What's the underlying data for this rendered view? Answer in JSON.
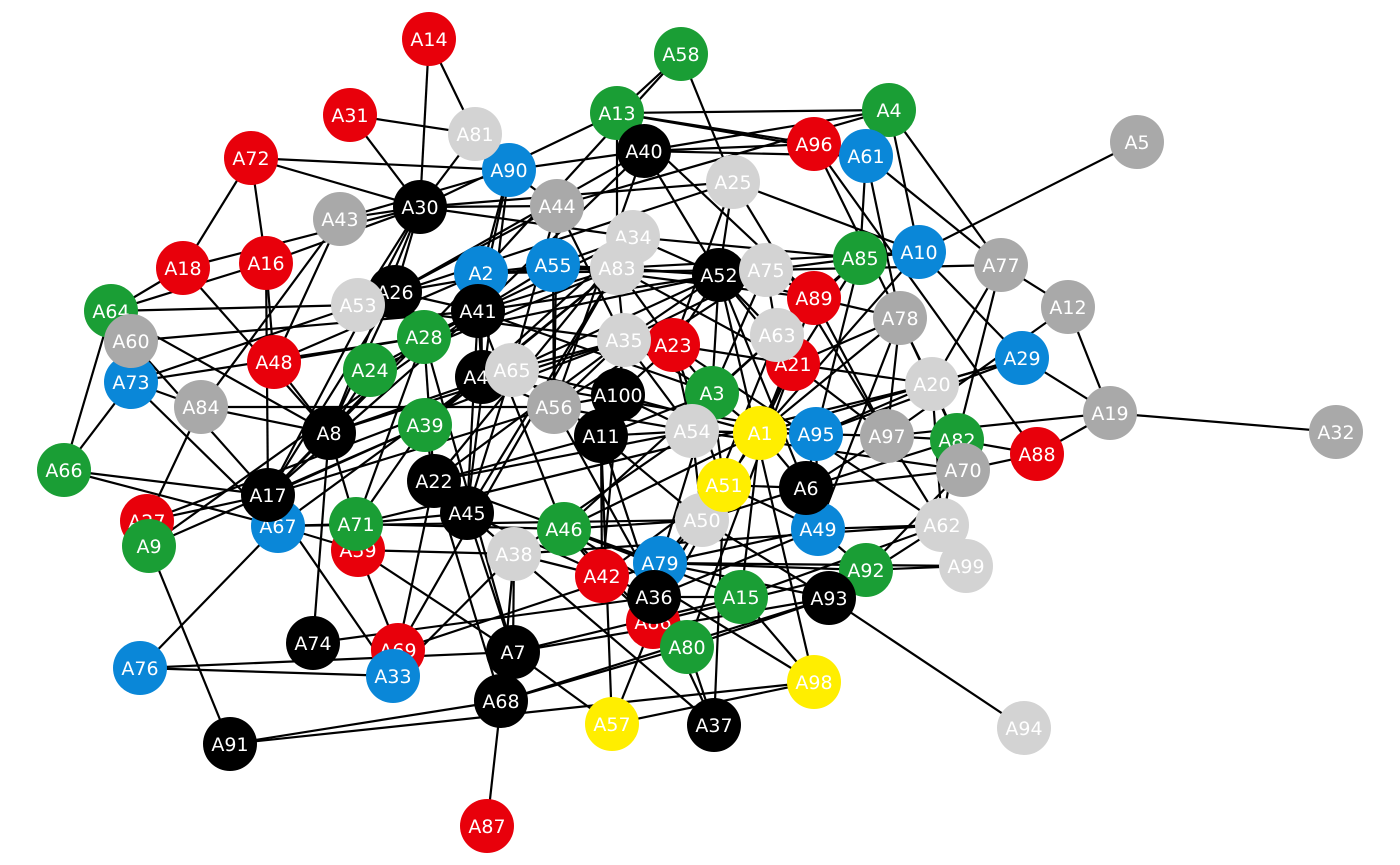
{
  "colors": {
    "red": "#e8000b",
    "green": "#1a9e35",
    "blue": "#0a87d8",
    "black": "#000000",
    "gray": "#a9a9a9",
    "light": "#d3d3d3",
    "yellow": "#ffee00"
  },
  "nodes": [
    {
      "id": "A14",
      "color": "red"
    },
    {
      "id": "A31",
      "color": "red"
    },
    {
      "id": "A72",
      "color": "red"
    },
    {
      "id": "A18",
      "color": "red"
    },
    {
      "id": "A16",
      "color": "red"
    },
    {
      "id": "A48",
      "color": "red"
    },
    {
      "id": "A27",
      "color": "red"
    },
    {
      "id": "A59",
      "color": "red"
    },
    {
      "id": "A69",
      "color": "red"
    },
    {
      "id": "A87",
      "color": "red"
    },
    {
      "id": "A42",
      "color": "red"
    },
    {
      "id": "A86",
      "color": "red"
    },
    {
      "id": "A23",
      "color": "red"
    },
    {
      "id": "A21",
      "color": "red"
    },
    {
      "id": "A89",
      "color": "red"
    },
    {
      "id": "A96",
      "color": "red"
    },
    {
      "id": "A88",
      "color": "red"
    },
    {
      "id": "A58",
      "color": "green"
    },
    {
      "id": "A13",
      "color": "green"
    },
    {
      "id": "A4",
      "color": "green"
    },
    {
      "id": "A85",
      "color": "green"
    },
    {
      "id": "A64",
      "color": "green"
    },
    {
      "id": "A28",
      "color": "green"
    },
    {
      "id": "A24",
      "color": "green"
    },
    {
      "id": "A39",
      "color": "green"
    },
    {
      "id": "A66",
      "color": "green"
    },
    {
      "id": "A9",
      "color": "green"
    },
    {
      "id": "A71",
      "color": "green"
    },
    {
      "id": "A46",
      "color": "green"
    },
    {
      "id": "A3",
      "color": "green"
    },
    {
      "id": "A15",
      "color": "green"
    },
    {
      "id": "A80",
      "color": "green"
    },
    {
      "id": "A92",
      "color": "green"
    },
    {
      "id": "A82",
      "color": "green"
    },
    {
      "id": "A90",
      "color": "blue"
    },
    {
      "id": "A61",
      "color": "blue"
    },
    {
      "id": "A10",
      "color": "blue"
    },
    {
      "id": "A2",
      "color": "blue"
    },
    {
      "id": "A55",
      "color": "blue"
    },
    {
      "id": "A73",
      "color": "blue"
    },
    {
      "id": "A67",
      "color": "blue"
    },
    {
      "id": "A76",
      "color": "blue"
    },
    {
      "id": "A33",
      "color": "blue"
    },
    {
      "id": "A79",
      "color": "blue"
    },
    {
      "id": "A49",
      "color": "blue"
    },
    {
      "id": "A95",
      "color": "blue"
    },
    {
      "id": "A29",
      "color": "blue"
    },
    {
      "id": "A30",
      "color": "black"
    },
    {
      "id": "A40",
      "color": "black"
    },
    {
      "id": "A26",
      "color": "black"
    },
    {
      "id": "A41",
      "color": "black"
    },
    {
      "id": "A47",
      "color": "black"
    },
    {
      "id": "A8",
      "color": "black"
    },
    {
      "id": "A17",
      "color": "black"
    },
    {
      "id": "A22",
      "color": "black"
    },
    {
      "id": "A45",
      "color": "black"
    },
    {
      "id": "A74",
      "color": "black"
    },
    {
      "id": "A7",
      "color": "black"
    },
    {
      "id": "A68",
      "color": "black"
    },
    {
      "id": "A91",
      "color": "black"
    },
    {
      "id": "A11",
      "color": "black"
    },
    {
      "id": "A100",
      "color": "black"
    },
    {
      "id": "A52",
      "color": "black"
    },
    {
      "id": "A36",
      "color": "black"
    },
    {
      "id": "A37",
      "color": "black"
    },
    {
      "id": "A93",
      "color": "black"
    },
    {
      "id": "A6",
      "color": "black"
    },
    {
      "id": "A5",
      "color": "gray"
    },
    {
      "id": "A43",
      "color": "gray"
    },
    {
      "id": "A44",
      "color": "gray"
    },
    {
      "id": "A60",
      "color": "gray"
    },
    {
      "id": "A84",
      "color": "gray"
    },
    {
      "id": "A56",
      "color": "gray"
    },
    {
      "id": "A78",
      "color": "gray"
    },
    {
      "id": "A77",
      "color": "gray"
    },
    {
      "id": "A12",
      "color": "gray"
    },
    {
      "id": "A19",
      "color": "gray"
    },
    {
      "id": "A32",
      "color": "gray"
    },
    {
      "id": "A97",
      "color": "gray"
    },
    {
      "id": "A70",
      "color": "gray"
    },
    {
      "id": "A81",
      "color": "light"
    },
    {
      "id": "A25",
      "color": "light"
    },
    {
      "id": "A34",
      "color": "light"
    },
    {
      "id": "A83",
      "color": "light"
    },
    {
      "id": "A75",
      "color": "light"
    },
    {
      "id": "A53",
      "color": "light"
    },
    {
      "id": "A35",
      "color": "light"
    },
    {
      "id": "A63",
      "color": "light"
    },
    {
      "id": "A65",
      "color": "light"
    },
    {
      "id": "A54",
      "color": "light"
    },
    {
      "id": "A20",
      "color": "light"
    },
    {
      "id": "A50",
      "color": "light"
    },
    {
      "id": "A38",
      "color": "light"
    },
    {
      "id": "A62",
      "color": "light"
    },
    {
      "id": "A99",
      "color": "light"
    },
    {
      "id": "A94",
      "color": "light"
    },
    {
      "id": "A1",
      "color": "yellow"
    },
    {
      "id": "A51",
      "color": "yellow"
    },
    {
      "id": "A57",
      "color": "yellow"
    },
    {
      "id": "A98",
      "color": "yellow"
    }
  ],
  "edges": [
    [
      "A14",
      "A81"
    ],
    [
      "A14",
      "A30"
    ],
    [
      "A81",
      "A30"
    ],
    [
      "A81",
      "A90"
    ],
    [
      "A31",
      "A30"
    ],
    [
      "A31",
      "A81"
    ],
    [
      "A72",
      "A30"
    ],
    [
      "A72",
      "A90"
    ],
    [
      "A72",
      "A18"
    ],
    [
      "A72",
      "A16"
    ],
    [
      "A18",
      "A64"
    ],
    [
      "A18",
      "A8"
    ],
    [
      "A18",
      "A30"
    ],
    [
      "A16",
      "A48"
    ],
    [
      "A16",
      "A30"
    ],
    [
      "A16",
      "A17"
    ],
    [
      "A16",
      "A64"
    ],
    [
      "A64",
      "A60"
    ],
    [
      "A64",
      "A66"
    ],
    [
      "A64",
      "A53"
    ],
    [
      "A64",
      "A8"
    ],
    [
      "A60",
      "A41"
    ],
    [
      "A60",
      "A17"
    ],
    [
      "A60",
      "A73"
    ],
    [
      "A73",
      "A84"
    ],
    [
      "A73",
      "A28"
    ],
    [
      "A73",
      "A67"
    ],
    [
      "A66",
      "A17"
    ],
    [
      "A66",
      "A73"
    ],
    [
      "A66",
      "A67"
    ],
    [
      "A43",
      "A30"
    ],
    [
      "A43",
      "A90"
    ],
    [
      "A43",
      "A48"
    ],
    [
      "A43",
      "A84"
    ],
    [
      "A84",
      "A8"
    ],
    [
      "A84",
      "A56"
    ],
    [
      "A84",
      "A27"
    ],
    [
      "A48",
      "A8"
    ],
    [
      "A48",
      "A2"
    ],
    [
      "A48",
      "A28"
    ],
    [
      "A27",
      "A17"
    ],
    [
      "A27",
      "A35"
    ],
    [
      "A9",
      "A91"
    ],
    [
      "A9",
      "A39"
    ],
    [
      "A9",
      "A41"
    ],
    [
      "A67",
      "A76"
    ],
    [
      "A67",
      "A71"
    ],
    [
      "A67",
      "A47"
    ],
    [
      "A67",
      "A59"
    ],
    [
      "A67",
      "A50"
    ],
    [
      "A17",
      "A41"
    ],
    [
      "A17",
      "A39"
    ],
    [
      "A17",
      "A28"
    ],
    [
      "A17",
      "A56"
    ],
    [
      "A17",
      "A33"
    ],
    [
      "A17",
      "A2"
    ],
    [
      "A8",
      "A74"
    ],
    [
      "A8",
      "A30"
    ],
    [
      "A8",
      "A26"
    ],
    [
      "A8",
      "A65"
    ],
    [
      "A8",
      "A71"
    ],
    [
      "A8",
      "A35"
    ],
    [
      "A24",
      "A41"
    ],
    [
      "A24",
      "A8"
    ],
    [
      "A24",
      "A83"
    ],
    [
      "A28",
      "A22"
    ],
    [
      "A28",
      "A52"
    ],
    [
      "A28",
      "A41"
    ],
    [
      "A28",
      "A71"
    ],
    [
      "A28",
      "A26"
    ],
    [
      "A39",
      "A22"
    ],
    [
      "A39",
      "A34"
    ],
    [
      "A39",
      "A71"
    ],
    [
      "A39",
      "A83"
    ],
    [
      "A71",
      "A46"
    ],
    [
      "A71",
      "A45"
    ],
    [
      "A71",
      "A20"
    ],
    [
      "A59",
      "A69"
    ],
    [
      "A59",
      "A7"
    ],
    [
      "A59",
      "A38"
    ],
    [
      "A74",
      "A36"
    ],
    [
      "A69",
      "A22"
    ],
    [
      "A69",
      "A79"
    ],
    [
      "A69",
      "A83"
    ],
    [
      "A69",
      "A33"
    ],
    [
      "A33",
      "A38"
    ],
    [
      "A33",
      "A76"
    ],
    [
      "A76",
      "A7"
    ],
    [
      "A7",
      "A45"
    ],
    [
      "A7",
      "A68"
    ],
    [
      "A7",
      "A28"
    ],
    [
      "A7",
      "A93"
    ],
    [
      "A7",
      "A57"
    ],
    [
      "A7",
      "A15"
    ],
    [
      "A7",
      "A38"
    ],
    [
      "A68",
      "A87"
    ],
    [
      "A68",
      "A91"
    ],
    [
      "A68",
      "A22"
    ],
    [
      "A68",
      "A80"
    ],
    [
      "A68",
      "A93"
    ],
    [
      "A68",
      "A38"
    ],
    [
      "A57",
      "A98"
    ],
    [
      "A57",
      "A11"
    ],
    [
      "A57",
      "A86"
    ],
    [
      "A37",
      "A36"
    ],
    [
      "A37",
      "A38"
    ],
    [
      "A37",
      "A79"
    ],
    [
      "A37",
      "A51"
    ],
    [
      "A86",
      "A46"
    ],
    [
      "A86",
      "A21"
    ],
    [
      "A86",
      "A92"
    ],
    [
      "A80",
      "A21"
    ],
    [
      "A80",
      "A36"
    ],
    [
      "A80",
      "A56"
    ],
    [
      "A80",
      "A93"
    ],
    [
      "A15",
      "A36"
    ],
    [
      "A15",
      "A62"
    ],
    [
      "A15",
      "A1"
    ],
    [
      "A15",
      "A46"
    ],
    [
      "A93",
      "A94"
    ],
    [
      "A93",
      "A79"
    ],
    [
      "A93",
      "A62"
    ],
    [
      "A92",
      "A49"
    ],
    [
      "A92",
      "A79"
    ],
    [
      "A92",
      "A99"
    ],
    [
      "A99",
      "A62"
    ],
    [
      "A99",
      "A79"
    ],
    [
      "A62",
      "A82"
    ],
    [
      "A62",
      "A23"
    ],
    [
      "A62",
      "A20"
    ],
    [
      "A70",
      "A88"
    ],
    [
      "A70",
      "A54"
    ],
    [
      "A70",
      "A92"
    ],
    [
      "A88",
      "A19"
    ],
    [
      "A88",
      "A82"
    ],
    [
      "A19",
      "A32"
    ],
    [
      "A19",
      "A12"
    ],
    [
      "A19",
      "A97"
    ],
    [
      "A19",
      "A29"
    ],
    [
      "A12",
      "A77"
    ],
    [
      "A12",
      "A97"
    ],
    [
      "A29",
      "A10"
    ],
    [
      "A29",
      "A95"
    ],
    [
      "A29",
      "A1"
    ],
    [
      "A5",
      "A10"
    ],
    [
      "A77",
      "A4"
    ],
    [
      "A77",
      "A82"
    ],
    [
      "A77",
      "A61"
    ],
    [
      "A77",
      "A75"
    ],
    [
      "A77",
      "A20"
    ],
    [
      "A10",
      "A85"
    ],
    [
      "A10",
      "A1"
    ],
    [
      "A10",
      "A83"
    ],
    [
      "A10",
      "A25"
    ],
    [
      "A61",
      "A78"
    ],
    [
      "A61",
      "A13"
    ],
    [
      "A61",
      "A85"
    ],
    [
      "A61",
      "A40"
    ],
    [
      "A4",
      "A13"
    ],
    [
      "A4",
      "A40"
    ],
    [
      "A4",
      "A44"
    ],
    [
      "A4",
      "A10"
    ],
    [
      "A96",
      "A13"
    ],
    [
      "A96",
      "A40"
    ],
    [
      "A96",
      "A20"
    ],
    [
      "A96",
      "A88"
    ],
    [
      "A58",
      "A13"
    ],
    [
      "A58",
      "A25"
    ],
    [
      "A58",
      "A2"
    ],
    [
      "A13",
      "A40"
    ],
    [
      "A13",
      "A83"
    ],
    [
      "A13",
      "A30"
    ],
    [
      "A13",
      "A89"
    ],
    [
      "A40",
      "A26"
    ],
    [
      "A40",
      "A52"
    ],
    [
      "A40",
      "A41"
    ],
    [
      "A40",
      "A90"
    ],
    [
      "A40",
      "A56"
    ],
    [
      "A90",
      "A44"
    ],
    [
      "A90",
      "A41"
    ],
    [
      "A90",
      "A45"
    ],
    [
      "A90",
      "A2"
    ],
    [
      "A25",
      "A52"
    ],
    [
      "A25",
      "A97"
    ],
    [
      "A25",
      "A23"
    ],
    [
      "A25",
      "A30"
    ],
    [
      "A25",
      "A53"
    ],
    [
      "A44",
      "A30"
    ],
    [
      "A44",
      "A26"
    ],
    [
      "A44",
      "A56"
    ],
    [
      "A44",
      "A35"
    ],
    [
      "A44",
      "A65"
    ],
    [
      "A30",
      "A53"
    ],
    [
      "A30",
      "A26"
    ],
    [
      "A30",
      "A34"
    ],
    [
      "A30",
      "A17"
    ],
    [
      "A34",
      "A55"
    ],
    [
      "A34",
      "A83"
    ],
    [
      "A34",
      "A85"
    ],
    [
      "A34",
      "A41"
    ],
    [
      "A34",
      "A22"
    ],
    [
      "A55",
      "A2"
    ],
    [
      "A55",
      "A41"
    ],
    [
      "A55",
      "A52"
    ],
    [
      "A55",
      "A89"
    ],
    [
      "A55",
      "A56"
    ],
    [
      "A55",
      "A26"
    ],
    [
      "A2",
      "A41"
    ],
    [
      "A2",
      "A83"
    ],
    [
      "A2",
      "A47"
    ],
    [
      "A2",
      "A75"
    ],
    [
      "A26",
      "A53"
    ],
    [
      "A26",
      "A41"
    ],
    [
      "A26",
      "A17"
    ],
    [
      "A53",
      "A73"
    ],
    [
      "A53",
      "A35"
    ],
    [
      "A41",
      "A47"
    ],
    [
      "A41",
      "A83"
    ],
    [
      "A41",
      "A45"
    ],
    [
      "A41",
      "A46"
    ],
    [
      "A41",
      "A52"
    ],
    [
      "A41",
      "A3"
    ],
    [
      "A47",
      "A65"
    ],
    [
      "A47",
      "A56"
    ],
    [
      "A47",
      "A35"
    ],
    [
      "A47",
      "A83"
    ],
    [
      "A47",
      "A95"
    ],
    [
      "A65",
      "A100"
    ],
    [
      "A65",
      "A11"
    ],
    [
      "A65",
      "A52"
    ],
    [
      "A65",
      "A45"
    ],
    [
      "A56",
      "A100"
    ],
    [
      "A56",
      "A35"
    ],
    [
      "A56",
      "A75"
    ],
    [
      "A56",
      "A54"
    ],
    [
      "A100",
      "A11"
    ],
    [
      "A100",
      "A35"
    ],
    [
      "A100",
      "A23"
    ],
    [
      "A100",
      "A54"
    ],
    [
      "A100",
      "A1"
    ],
    [
      "A11",
      "A54"
    ],
    [
      "A11",
      "A22"
    ],
    [
      "A11",
      "A36"
    ],
    [
      "A11",
      "A50"
    ],
    [
      "A11",
      "A3"
    ],
    [
      "A11",
      "A42"
    ],
    [
      "A22",
      "A54"
    ],
    [
      "A22",
      "A45"
    ],
    [
      "A22",
      "A35"
    ],
    [
      "A22",
      "A79"
    ],
    [
      "A45",
      "A83"
    ],
    [
      "A45",
      "A38"
    ],
    [
      "A45",
      "A36"
    ],
    [
      "A38",
      "A54"
    ],
    [
      "A38",
      "A62"
    ],
    [
      "A38",
      "A42"
    ],
    [
      "A42",
      "A46"
    ],
    [
      "A42",
      "A35"
    ],
    [
      "A42",
      "A51"
    ],
    [
      "A42",
      "A86"
    ],
    [
      "A46",
      "A50"
    ],
    [
      "A46",
      "A1"
    ],
    [
      "A46",
      "A63"
    ],
    [
      "A79",
      "A50"
    ],
    [
      "A79",
      "A51"
    ],
    [
      "A79",
      "A49"
    ],
    [
      "A79",
      "A3"
    ],
    [
      "A36",
      "A50"
    ],
    [
      "A36",
      "A51"
    ],
    [
      "A36",
      "A49"
    ],
    [
      "A50",
      "A54"
    ],
    [
      "A50",
      "A63"
    ],
    [
      "A50",
      "A82"
    ],
    [
      "A54",
      "A1"
    ],
    [
      "A54",
      "A95"
    ],
    [
      "A54",
      "A35"
    ],
    [
      "A54",
      "A23"
    ],
    [
      "A51",
      "A1"
    ],
    [
      "A51",
      "A6"
    ],
    [
      "A51",
      "A3"
    ],
    [
      "A51",
      "A23"
    ],
    [
      "A51",
      "A49"
    ],
    [
      "A1",
      "A6"
    ],
    [
      "A1",
      "A95"
    ],
    [
      "A1",
      "A21"
    ],
    [
      "A1",
      "A89"
    ],
    [
      "A1",
      "A3"
    ],
    [
      "A6",
      "A49"
    ],
    [
      "A6",
      "A95"
    ],
    [
      "A6",
      "A52"
    ],
    [
      "A6",
      "A97"
    ],
    [
      "A6",
      "A70"
    ],
    [
      "A49",
      "A95"
    ],
    [
      "A49",
      "A62"
    ],
    [
      "A49",
      "A78"
    ],
    [
      "A95",
      "A97"
    ],
    [
      "A95",
      "A85"
    ],
    [
      "A95",
      "A20"
    ],
    [
      "A97",
      "A62"
    ],
    [
      "A97",
      "A21"
    ],
    [
      "A97",
      "A82"
    ],
    [
      "A97",
      "A89"
    ],
    [
      "A97",
      "A78"
    ],
    [
      "A82",
      "A20"
    ],
    [
      "A82",
      "A78"
    ],
    [
      "A20",
      "A29"
    ],
    [
      "A20",
      "A21"
    ],
    [
      "A78",
      "A89"
    ],
    [
      "A78",
      "A21"
    ],
    [
      "A78",
      "A1"
    ],
    [
      "A89",
      "A75"
    ],
    [
      "A89",
      "A63"
    ],
    [
      "A89",
      "A52"
    ],
    [
      "A89",
      "A85"
    ],
    [
      "A85",
      "A63"
    ],
    [
      "A85",
      "A21"
    ],
    [
      "A85",
      "A75"
    ],
    [
      "A75",
      "A52"
    ],
    [
      "A75",
      "A63"
    ],
    [
      "A75",
      "A35"
    ],
    [
      "A63",
      "A21"
    ],
    [
      "A63",
      "A3"
    ],
    [
      "A63",
      "A52"
    ],
    [
      "A21",
      "A23"
    ],
    [
      "A21",
      "A52"
    ],
    [
      "A23",
      "A35"
    ],
    [
      "A23",
      "A3"
    ],
    [
      "A23",
      "A83"
    ],
    [
      "A23",
      "A52"
    ],
    [
      "A35",
      "A83"
    ],
    [
      "A35",
      "A3"
    ],
    [
      "A35",
      "A52"
    ],
    [
      "A83",
      "A52"
    ],
    [
      "A83",
      "A21"
    ],
    [
      "A3",
      "A52"
    ],
    [
      "A3",
      "A75"
    ],
    [
      "A52",
      "A98"
    ],
    [
      "A52",
      "A34"
    ],
    [
      "A98",
      "A15"
    ],
    [
      "A98",
      "A46"
    ],
    [
      "A93",
      "A50"
    ],
    [
      "A91",
      "A98"
    ]
  ]
}
